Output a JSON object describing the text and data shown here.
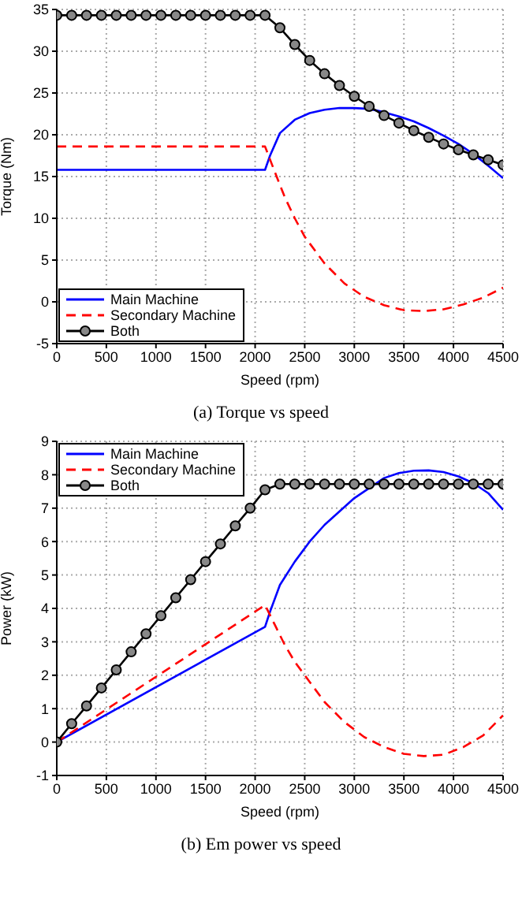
{
  "chart_data": [
    {
      "type": "line",
      "xlabel": "Speed (rpm)",
      "ylabel": "Torque (Nm)",
      "annotations": [
        "(a) Torque vs speed"
      ],
      "xlim": [
        0,
        4500
      ],
      "xticks": [
        0,
        500,
        1000,
        1500,
        2000,
        2500,
        3000,
        3500,
        4000,
        4500
      ],
      "ylim": [
        -5,
        35
      ],
      "yticks": [
        -5,
        0,
        5,
        10,
        15,
        20,
        25,
        30,
        35
      ],
      "grid": true,
      "legend": "bottom left",
      "series": [
        {
          "name": "Main Machine",
          "color": "#0000ff",
          "line_style": "solid",
          "marker": "none",
          "x": [
            0,
            2100,
            2150,
            2250,
            2400,
            2550,
            2700,
            2850,
            3000,
            3150,
            3300,
            3450,
            3600,
            3750,
            3900,
            4050,
            4200,
            4350,
            4500
          ],
          "values": [
            15.8,
            15.8,
            17.5,
            20.2,
            21.8,
            22.6,
            23.0,
            23.2,
            23.2,
            23.1,
            22.7,
            22.2,
            21.6,
            20.8,
            19.9,
            18.9,
            17.7,
            16.3,
            14.8
          ]
        },
        {
          "name": "Secondary Machine",
          "color": "#ff0000",
          "line_style": "dashed",
          "marker": "none",
          "x": [
            0,
            2100,
            2200,
            2300,
            2400,
            2500,
            2700,
            2900,
            3100,
            3300,
            3500,
            3700,
            3900,
            4100,
            4300,
            4500
          ],
          "values": [
            18.6,
            18.6,
            15.5,
            12.5,
            10.0,
            7.8,
            4.6,
            2.2,
            0.6,
            -0.4,
            -1.0,
            -1.1,
            -0.9,
            -0.3,
            0.5,
            1.7
          ]
        },
        {
          "name": "Both",
          "color": "#000000",
          "line_style": "solid",
          "marker": "circle",
          "x": [
            0,
            150,
            300,
            450,
            600,
            750,
            900,
            1050,
            1200,
            1350,
            1500,
            1650,
            1800,
            1950,
            2100,
            2250,
            2400,
            2550,
            2700,
            2850,
            3000,
            3150,
            3300,
            3450,
            3600,
            3750,
            3900,
            4050,
            4200,
            4350,
            4500
          ],
          "values": [
            34.3,
            34.3,
            34.3,
            34.3,
            34.3,
            34.3,
            34.3,
            34.3,
            34.3,
            34.3,
            34.3,
            34.3,
            34.3,
            34.3,
            34.3,
            32.8,
            30.8,
            28.9,
            27.3,
            25.9,
            24.6,
            23.4,
            22.3,
            21.4,
            20.5,
            19.7,
            18.9,
            18.2,
            17.6,
            17.0,
            16.4
          ]
        }
      ]
    },
    {
      "type": "line",
      "xlabel": "Speed (rpm)",
      "ylabel": "Power (kW)",
      "annotations": [
        "(b) Em power vs speed"
      ],
      "xlim": [
        0,
        4500
      ],
      "xticks": [
        0,
        500,
        1000,
        1500,
        2000,
        2500,
        3000,
        3500,
        4000,
        4500
      ],
      "ylim": [
        -1,
        9
      ],
      "yticks": [
        -1,
        0,
        1,
        2,
        3,
        4,
        5,
        6,
        7,
        8,
        9
      ],
      "grid": true,
      "legend": "top left",
      "series": [
        {
          "name": "Main Machine",
          "color": "#0000ff",
          "line_style": "solid",
          "marker": "none",
          "x": [
            0,
            2100,
            2150,
            2250,
            2400,
            2550,
            2700,
            2850,
            3000,
            3150,
            3300,
            3450,
            3600,
            3750,
            3900,
            4050,
            4200,
            4350,
            4500
          ],
          "values": [
            0,
            3.45,
            3.9,
            4.7,
            5.4,
            6.0,
            6.5,
            6.9,
            7.3,
            7.6,
            7.9,
            8.05,
            8.12,
            8.13,
            8.08,
            7.95,
            7.75,
            7.45,
            6.95
          ]
        },
        {
          "name": "Secondary Machine",
          "color": "#ff0000",
          "line_style": "dashed",
          "marker": "none",
          "x": [
            0,
            2100,
            2200,
            2300,
            2400,
            2500,
            2700,
            2900,
            3100,
            3300,
            3500,
            3700,
            3900,
            4100,
            4300,
            4500
          ],
          "values": [
            0,
            4.1,
            3.5,
            2.9,
            2.4,
            2.0,
            1.2,
            0.6,
            0.15,
            -0.15,
            -0.35,
            -0.42,
            -0.38,
            -0.15,
            0.2,
            0.8
          ]
        },
        {
          "name": "Both",
          "color": "#000000",
          "line_style": "solid",
          "marker": "circle",
          "x": [
            0,
            150,
            300,
            450,
            600,
            750,
            900,
            1050,
            1200,
            1350,
            1500,
            1650,
            1800,
            1950,
            2100,
            2250,
            2400,
            2550,
            2700,
            2850,
            3000,
            3150,
            3300,
            3450,
            3600,
            3750,
            3900,
            4050,
            4200,
            4350,
            4500
          ],
          "values": [
            0,
            0.55,
            1.08,
            1.62,
            2.16,
            2.7,
            3.24,
            3.78,
            4.32,
            4.86,
            5.4,
            5.93,
            6.47,
            7.0,
            7.55,
            7.72,
            7.72,
            7.72,
            7.72,
            7.72,
            7.72,
            7.72,
            7.72,
            7.72,
            7.72,
            7.72,
            7.72,
            7.72,
            7.72,
            7.72,
            7.72
          ]
        }
      ]
    }
  ]
}
